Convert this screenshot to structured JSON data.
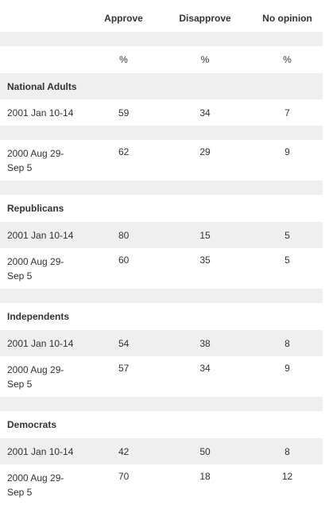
{
  "columns": {
    "approve": "Approve",
    "disapprove": "Disapprove",
    "no_opinion": "No opinion"
  },
  "units": {
    "approve": "%",
    "disapprove": "%",
    "no_opinion": "%"
  },
  "groups": [
    {
      "name": "National Adults",
      "rows": [
        {
          "date": "2001 Jan 10-14",
          "approve": "59",
          "disapprove": "34",
          "no_opinion": "7"
        },
        {
          "date": "2000 Aug 29-\nSep 5",
          "date_line1": "2000 Aug 29-",
          "date_line2": "Sep 5",
          "approve": "62",
          "disapprove": "29",
          "no_opinion": "9"
        }
      ]
    },
    {
      "name": "Republicans",
      "rows": [
        {
          "date": "2001 Jan 10-14",
          "approve": "80",
          "disapprove": "15",
          "no_opinion": "5"
        },
        {
          "date_line1": "2000 Aug 29-",
          "date_line2": "Sep 5",
          "approve": "60",
          "disapprove": "35",
          "no_opinion": "5"
        }
      ]
    },
    {
      "name": "Independents",
      "rows": [
        {
          "date": "2001 Jan 10-14",
          "approve": "54",
          "disapprove": "38",
          "no_opinion": "8"
        },
        {
          "date_line1": "2000 Aug 29-",
          "date_line2": "Sep 5",
          "approve": "57",
          "disapprove": "34",
          "no_opinion": "9"
        }
      ]
    },
    {
      "name": "Democrats",
      "rows": [
        {
          "date": "2001 Jan 10-14",
          "approve": "42",
          "disapprove": "50",
          "no_opinion": "8"
        },
        {
          "date_line1": "2000 Aug 29-",
          "date_line2": "Sep 5",
          "approve": "70",
          "disapprove": "18",
          "no_opinion": "12"
        }
      ]
    }
  ]
}
